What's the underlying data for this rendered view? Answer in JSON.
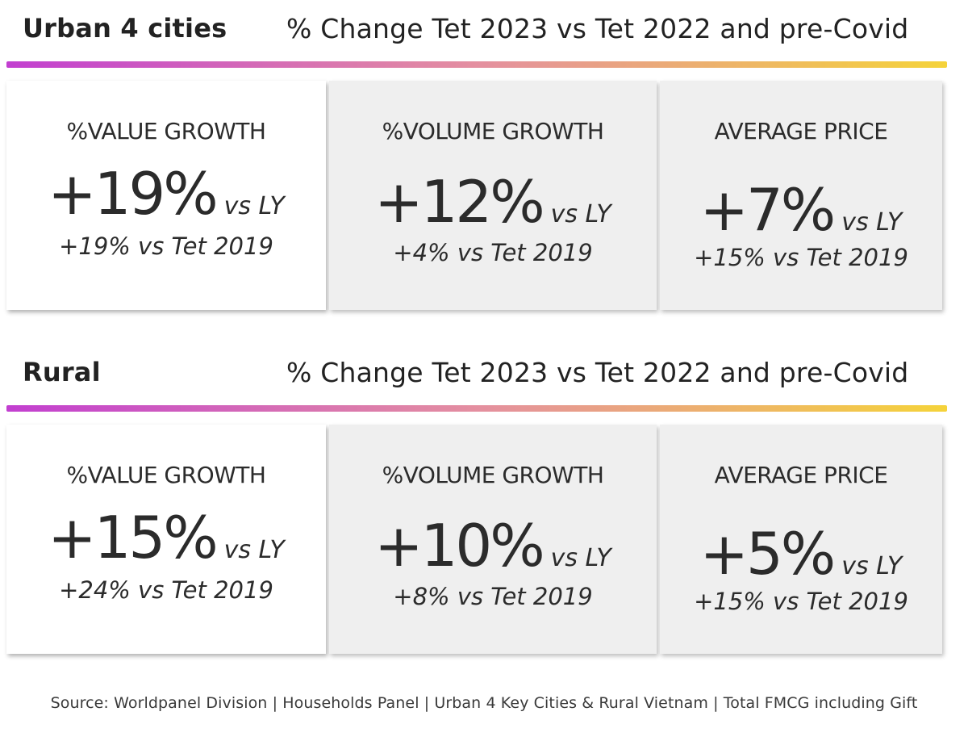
{
  "sections": [
    {
      "region": "Urban 4 cities",
      "subtitle": "% Change Tet 2023 vs Tet 2022 and pre-Covid",
      "cards": [
        {
          "label": "%VALUE GROWTH",
          "value": "+19%",
          "vs_ly": "vs LY",
          "secondary": "+19% vs Tet 2019"
        },
        {
          "label": "%VOLUME GROWTH",
          "value": "+12%",
          "vs_ly": "vs LY",
          "secondary": "+4% vs Tet 2019"
        },
        {
          "label": "AVERAGE PRICE",
          "value": "+7%",
          "vs_ly": "vs LY",
          "secondary": "+15% vs Tet 2019"
        }
      ]
    },
    {
      "region": "Rural",
      "subtitle": "% Change Tet 2023 vs Tet 2022 and pre-Covid",
      "cards": [
        {
          "label": "%VALUE GROWTH",
          "value": "+15%",
          "vs_ly": "vs LY",
          "secondary": "+24% vs Tet 2019"
        },
        {
          "label": "%VOLUME GROWTH",
          "value": "+10%",
          "vs_ly": "vs LY",
          "secondary": "+8% vs Tet 2019"
        },
        {
          "label": "AVERAGE PRICE",
          "value": "+5%",
          "vs_ly": "vs LY",
          "secondary": "+15% vs Tet 2019"
        }
      ]
    }
  ],
  "source": "Source: Worldpanel Division | Households Panel | Urban 4 Key Cities & Rural Vietnam | Total FMCG including Gift",
  "colors": {
    "gradient_start": "#c23fd0",
    "gradient_mid": "#e48fa0",
    "gradient_end": "#f5d33a",
    "card_white": "#ffffff",
    "card_gray": "#efefef",
    "text": "#2b2b2b"
  }
}
